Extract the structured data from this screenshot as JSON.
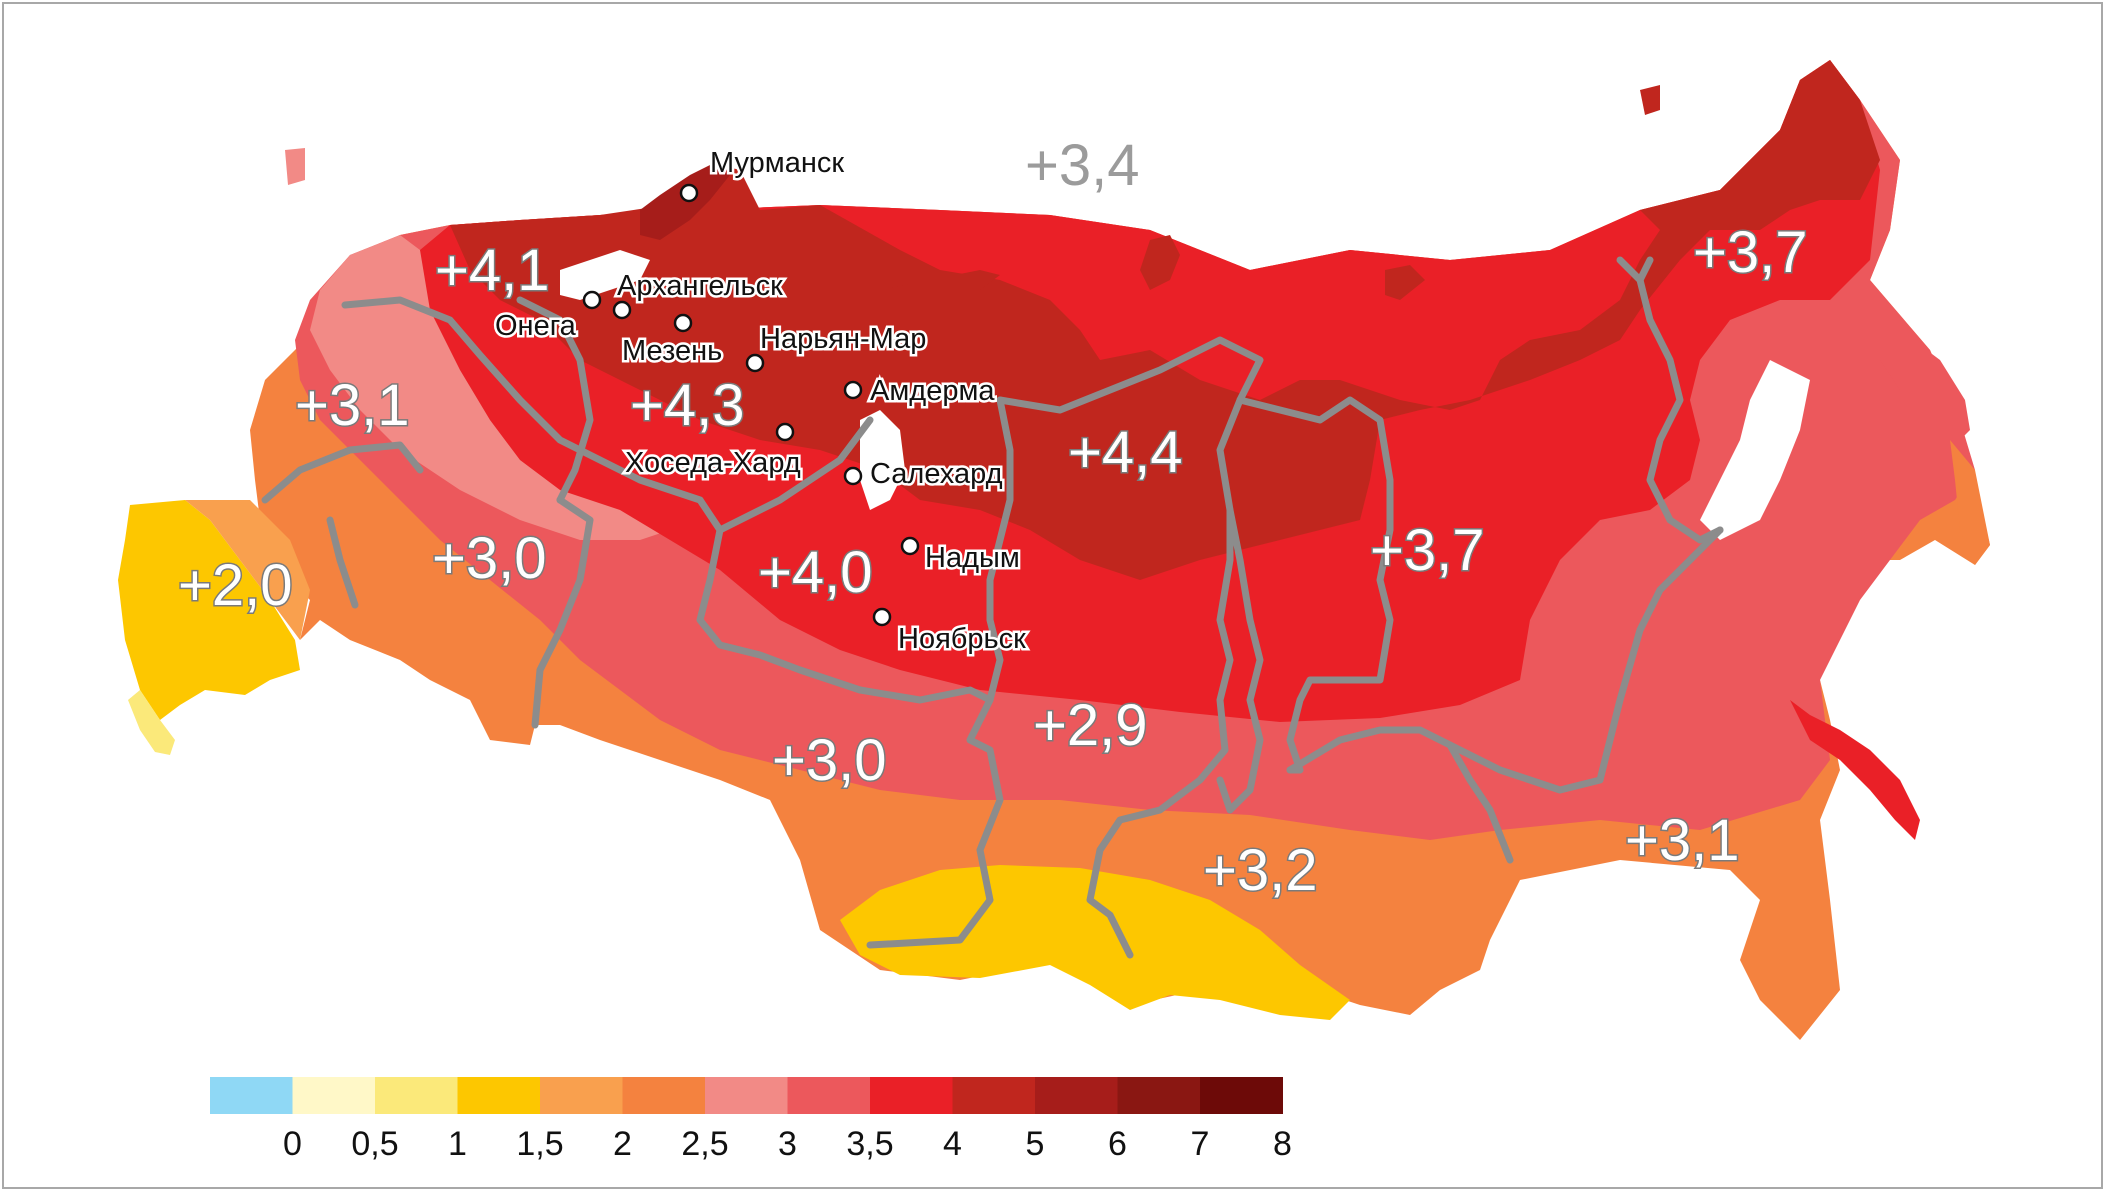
{
  "map": {
    "colors": {
      "lt0": "#8fd8f5",
      "c0_05": "#fff8c8",
      "c05_1": "#fbe97a",
      "c1_15": "#fdc700",
      "c15_2": "#f9a04e",
      "c2_25": "#f4823f",
      "c25_3": "#f28a86",
      "c3_35": "#ec585c",
      "c35_4": "#ea2027",
      "c4_5": "#c0261e",
      "c5_6": "#a61d1a",
      "c6_7": "#8a1712",
      "c7_8": "#6d0a08"
    },
    "region_values": [
      {
        "id": "nw",
        "text": "+4,1"
      },
      {
        "id": "west",
        "text": "+3,1"
      },
      {
        "id": "south",
        "text": "+2,0"
      },
      {
        "id": "volga",
        "text": "+3,0"
      },
      {
        "id": "komi",
        "text": "+4,3"
      },
      {
        "id": "urals",
        "text": "+4,0"
      },
      {
        "id": "taimyr",
        "text": "+4,4"
      },
      {
        "id": "siberia_s",
        "text": "+3,0"
      },
      {
        "id": "siberia_c",
        "text": "+2,9"
      },
      {
        "id": "baikal",
        "text": "+3,2"
      },
      {
        "id": "yakutia",
        "text": "+3,7"
      },
      {
        "id": "chukotka",
        "text": "+3,7"
      },
      {
        "id": "far_east",
        "text": "+3,1"
      }
    ],
    "sea_value": "+3,4",
    "cities": [
      {
        "name": "Мурманск"
      },
      {
        "name": "Архангельск"
      },
      {
        "name": "Онега"
      },
      {
        "name": "Мезень"
      },
      {
        "name": "Нарьян-Мар"
      },
      {
        "name": "Амдерма"
      },
      {
        "name": "Хоседа-Хард"
      },
      {
        "name": "Салехард"
      },
      {
        "name": "Надым"
      },
      {
        "name": "Ноябрьск"
      }
    ]
  },
  "legend": {
    "swatch_colors": [
      "#8fd8f5",
      "#fff8c8",
      "#fbe97a",
      "#fdc700",
      "#f9a04e",
      "#f4823f",
      "#f28a86",
      "#ec585c",
      "#ea2027",
      "#c0261e",
      "#a61d1a",
      "#8a1712",
      "#6d0a08"
    ],
    "ticks": [
      "0",
      "0,5",
      "1",
      "1,5",
      "2",
      "2,5",
      "3",
      "3,5",
      "4",
      "5",
      "6",
      "7",
      "8"
    ]
  }
}
